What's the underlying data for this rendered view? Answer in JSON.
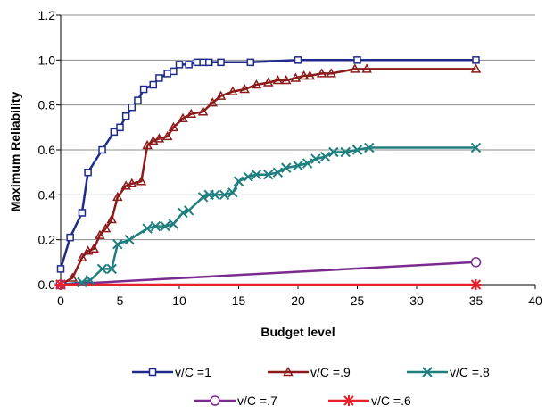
{
  "chart_data": {
    "type": "line",
    "title": "",
    "xlabel": "Budget level",
    "ylabel": "Maximum Reliability",
    "xlim": [
      0,
      40
    ],
    "ylim": [
      0,
      1.2
    ],
    "xticks": [
      0,
      5,
      10,
      15,
      20,
      25,
      30,
      35,
      40
    ],
    "yticks": [
      0.0,
      0.2,
      0.4,
      0.6,
      0.8,
      1.0,
      1.2
    ],
    "xtick_labels": [
      "0",
      "5",
      "10",
      "15",
      "20",
      "25",
      "30",
      "35",
      "40"
    ],
    "ytick_labels": [
      "0.0",
      "0.2",
      "0.4",
      "0.6",
      "0.8",
      "1.0",
      "1.2"
    ],
    "grid": "horizontal",
    "legend_position": "bottom",
    "series": [
      {
        "name": "v/C =1",
        "color": "#1f2a8a",
        "marker": "square",
        "x": [
          0,
          0.8,
          1.8,
          2.3,
          3.5,
          4.5,
          5.0,
          5.5,
          6.0,
          6.5,
          7.0,
          7.8,
          8.3,
          9.0,
          9.5,
          10.0,
          10.8,
          11.5,
          12.0,
          12.5,
          13.5,
          16.0,
          20.0,
          25.0,
          35.0
        ],
        "y": [
          0.07,
          0.21,
          0.32,
          0.5,
          0.6,
          0.68,
          0.7,
          0.75,
          0.79,
          0.82,
          0.87,
          0.89,
          0.92,
          0.94,
          0.95,
          0.98,
          0.98,
          0.99,
          0.99,
          0.99,
          0.99,
          0.99,
          1.0,
          1.0,
          1.0
        ]
      },
      {
        "name": "v/C =.9",
        "color": "#8b1a1a",
        "marker": "triangle",
        "x": [
          0,
          1.0,
          1.8,
          2.3,
          2.8,
          3.3,
          3.8,
          4.3,
          4.8,
          5.5,
          6.0,
          6.8,
          7.3,
          7.8,
          8.3,
          9.0,
          9.5,
          10.3,
          11.0,
          12.0,
          12.8,
          13.5,
          14.5,
          15.5,
          16.5,
          17.5,
          18.3,
          19.0,
          19.8,
          20.5,
          21.0,
          22.0,
          22.8,
          24.8,
          25.8,
          35.0
        ],
        "y": [
          0.0,
          0.03,
          0.12,
          0.15,
          0.16,
          0.22,
          0.25,
          0.29,
          0.39,
          0.44,
          0.45,
          0.46,
          0.62,
          0.64,
          0.65,
          0.66,
          0.7,
          0.74,
          0.76,
          0.77,
          0.81,
          0.84,
          0.86,
          0.87,
          0.89,
          0.9,
          0.91,
          0.91,
          0.92,
          0.93,
          0.93,
          0.94,
          0.94,
          0.96,
          0.96,
          0.96
        ]
      },
      {
        "name": "v/C =.8",
        "color": "#1f7f7f",
        "marker": "x",
        "x": [
          0,
          1.8,
          2.5,
          3.5,
          4.3,
          4.8,
          5.8,
          7.3,
          8.0,
          8.8,
          9.5,
          10.3,
          10.8,
          12.0,
          12.5,
          13.0,
          13.8,
          14.5,
          15.0,
          15.8,
          16.5,
          17.5,
          18.3,
          19.0,
          20.0,
          20.8,
          21.5,
          22.3,
          23.0,
          24.0,
          25.0,
          26.0,
          35.0
        ],
        "y": [
          0.0,
          0.01,
          0.02,
          0.07,
          0.07,
          0.18,
          0.2,
          0.25,
          0.26,
          0.26,
          0.27,
          0.32,
          0.33,
          0.39,
          0.4,
          0.4,
          0.4,
          0.41,
          0.46,
          0.48,
          0.49,
          0.49,
          0.5,
          0.52,
          0.53,
          0.54,
          0.56,
          0.57,
          0.59,
          0.59,
          0.6,
          0.61,
          0.61
        ]
      },
      {
        "name": "v/C =.7",
        "color": "#7b2a8f",
        "marker": "circle",
        "x": [
          0,
          35.0
        ],
        "y": [
          0.0,
          0.1
        ]
      },
      {
        "name": "v/C =.6",
        "color": "#e8202a",
        "marker": "star",
        "x": [
          0,
          35.0
        ],
        "y": [
          0.0,
          0.0
        ]
      }
    ]
  }
}
